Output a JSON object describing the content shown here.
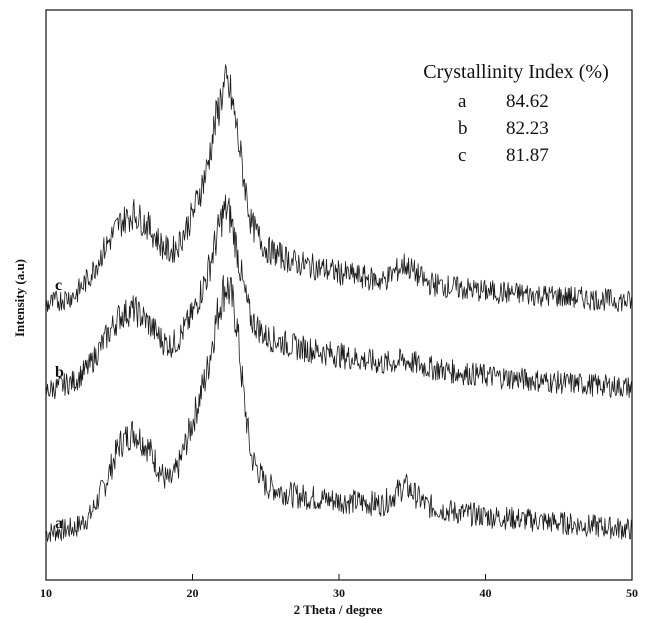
{
  "chart_data": {
    "type": "line",
    "xlabel": "2 Theta / degree",
    "ylabel": "Intensity (a.u)",
    "xlim": [
      10,
      50
    ],
    "xticks": [
      10,
      20,
      30,
      40,
      50
    ],
    "grid": false,
    "legend_placement": "top-right",
    "legend_title": "Crystallinity Index (%)",
    "series": [
      {
        "name": "a",
        "crystallinity_index": "84.62",
        "x": [
          10,
          12,
          13,
          14,
          15,
          16,
          17,
          18,
          18.5,
          19,
          20,
          21,
          21.5,
          22,
          22.3,
          22.6,
          23,
          23.5,
          24,
          25,
          27,
          30,
          33,
          34.5,
          36,
          38,
          40,
          45,
          50
        ],
        "y": [
          1.0,
          1.3,
          2.0,
          3.8,
          6.2,
          7.0,
          6.0,
          4.3,
          4.0,
          4.8,
          7.5,
          10.5,
          13.0,
          15.0,
          15.6,
          15.0,
          13.5,
          9.0,
          5.5,
          3.8,
          3.2,
          2.9,
          2.7,
          3.8,
          2.6,
          2.2,
          2.0,
          1.6,
          1.2
        ]
      },
      {
        "name": "b",
        "crystallinity_index": "82.23",
        "x": [
          10,
          12,
          13,
          14,
          15,
          16,
          17,
          18,
          18.5,
          19,
          20,
          21,
          21.5,
          22,
          22.3,
          22.6,
          23,
          23.5,
          24,
          25,
          27,
          30,
          33,
          34.5,
          36,
          38,
          40,
          45,
          50
        ],
        "y": [
          1.0,
          1.6,
          2.5,
          4.0,
          5.4,
          5.8,
          5.0,
          3.9,
          3.7,
          4.0,
          5.5,
          7.8,
          9.5,
          11.2,
          11.7,
          11.2,
          9.5,
          7.0,
          5.2,
          4.2,
          3.6,
          3.1,
          2.6,
          2.8,
          2.4,
          2.1,
          1.9,
          1.5,
          1.2
        ]
      },
      {
        "name": "c",
        "crystallinity_index": "81.87",
        "x": [
          10,
          12,
          13,
          14,
          15,
          16,
          17,
          18,
          18.5,
          19,
          20,
          21,
          21.5,
          22,
          22.3,
          22.6,
          23,
          23.5,
          24,
          25,
          27,
          30,
          33,
          34.5,
          36,
          38,
          40,
          45,
          50
        ],
        "y": [
          1.0,
          1.6,
          2.7,
          4.3,
          5.8,
          6.4,
          5.6,
          4.4,
          4.1,
          4.5,
          6.3,
          9.0,
          11.5,
          13.4,
          14.0,
          13.4,
          11.5,
          8.5,
          5.8,
          4.3,
          3.5,
          2.9,
          2.4,
          3.4,
          2.3,
          2.0,
          1.8,
          1.5,
          1.2
        ]
      }
    ]
  }
}
